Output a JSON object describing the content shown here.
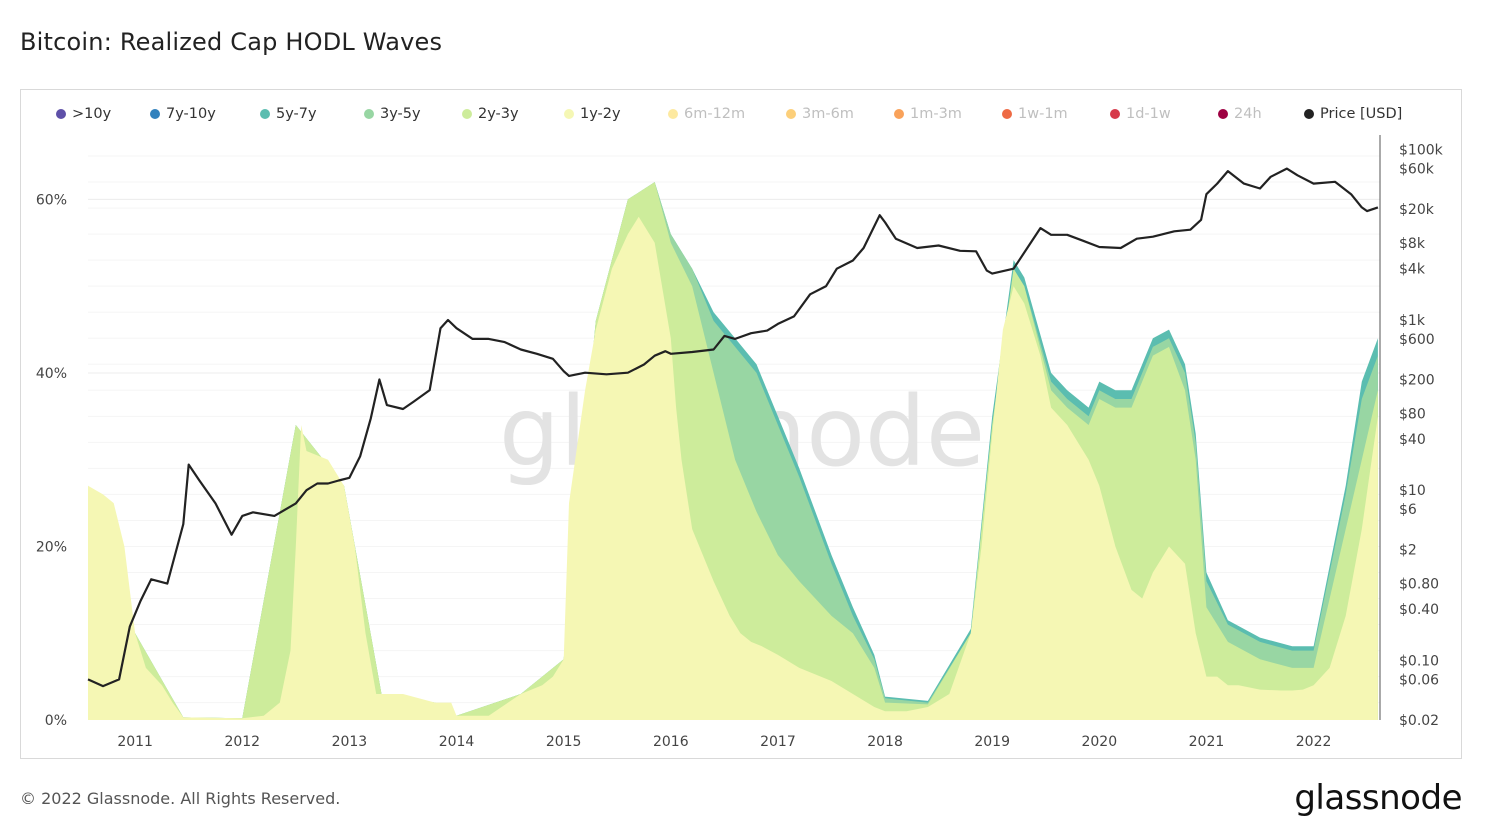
{
  "title": "Bitcoin: Realized Cap HODL Waves",
  "footer": "© 2022 Glassnode. All Rights Reserved.",
  "brand": "glassnode",
  "watermark": "glassnode",
  "legend": [
    {
      "label": ">10y",
      "color": "#5e50a8",
      "active": true
    },
    {
      "label": "7y-10y",
      "color": "#3181bd",
      "active": true
    },
    {
      "label": "5y-7y",
      "color": "#5bbdb0",
      "active": true
    },
    {
      "label": "3y-5y",
      "color": "#98d6a3",
      "active": true
    },
    {
      "label": "2y-3y",
      "color": "#cdec9b",
      "active": true
    },
    {
      "label": "1y-2y",
      "color": "#f5f7b4",
      "active": true
    },
    {
      "label": "6m-12m",
      "color": "#fde9a0",
      "active": false
    },
    {
      "label": "3m-6m",
      "color": "#fccf7a",
      "active": false
    },
    {
      "label": "1m-3m",
      "color": "#f9a25a",
      "active": false
    },
    {
      "label": "1w-1m",
      "color": "#ee6a44",
      "active": false
    },
    {
      "label": "1d-1w",
      "color": "#d63a4a",
      "active": false
    },
    {
      "label": "24h",
      "color": "#9e0142",
      "active": false
    },
    {
      "label": "Price [USD]",
      "color": "#222222",
      "active": true
    }
  ],
  "chart_data": {
    "type": "area",
    "x_ticks": [
      "2011",
      "2012",
      "2013",
      "2014",
      "2015",
      "2016",
      "2017",
      "2018",
      "2019",
      "2020",
      "2021",
      "2022"
    ],
    "y_left_ticks": [
      "0%",
      "20%",
      "40%",
      "60%"
    ],
    "y_right_ticks": [
      "$0.02",
      "$0.06",
      "$0.10",
      "$0.40",
      "$0.80",
      "$2",
      "$6",
      "$10",
      "$40",
      "$80",
      "$200",
      "$600",
      "$1k",
      "$4k",
      "$8k",
      "$20k",
      "$60k",
      "$100k"
    ],
    "y_left_range": [
      0,
      0.68
    ],
    "y_right_range_log": [
      0.02,
      130000
    ],
    "x_range": [
      2010.56,
      2022.62
    ],
    "grid": true,
    "legend_placement": "top",
    "series": [
      {
        "name": "1y-2y",
        "x": [
          2010.56,
          2010.7,
          2010.8,
          2010.9,
          2011.0,
          2011.1,
          2011.25,
          2011.35,
          2011.45,
          2012.0,
          2012.2,
          2012.35,
          2012.45,
          2012.5,
          2012.55,
          2012.6,
          2012.8,
          2012.95,
          2013.05,
          2013.15,
          2013.25,
          2013.3,
          2013.5,
          2013.8,
          2013.95,
          2014.0,
          2014.3,
          2014.6,
          2014.8,
          2014.9,
          2015.0,
          2015.05,
          2015.2,
          2015.3,
          2015.45,
          2015.6,
          2015.7,
          2015.85,
          2016.0,
          2016.05,
          2016.1,
          2016.2,
          2016.4,
          2016.55,
          2016.65,
          2016.75,
          2016.85,
          2017.0,
          2017.2,
          2017.5,
          2017.7,
          2017.9,
          2018.0,
          2018.2,
          2018.4,
          2018.6,
          2018.8,
          2018.9,
          2019.0,
          2019.1,
          2019.2,
          2019.3,
          2019.45,
          2019.55,
          2019.7,
          2019.9,
          2020.0,
          2020.15,
          2020.3,
          2020.4,
          2020.5,
          2020.65,
          2020.8,
          2020.9,
          2021.0,
          2021.1,
          2021.2,
          2021.3,
          2021.5,
          2021.7,
          2021.8,
          2021.9,
          2022.0,
          2022.15,
          2022.3,
          2022.45,
          2022.6
        ],
        "y": [
          0.27,
          0.26,
          0.25,
          0.2,
          0.1,
          0.06,
          0.04,
          0.02,
          0.003,
          0.002,
          0.005,
          0.02,
          0.08,
          0.2,
          0.34,
          0.31,
          0.3,
          0.27,
          0.2,
          0.1,
          0.03,
          0.03,
          0.03,
          0.02,
          0.02,
          0.005,
          0.005,
          0.03,
          0.04,
          0.05,
          0.07,
          0.25,
          0.38,
          0.45,
          0.52,
          0.56,
          0.58,
          0.55,
          0.44,
          0.36,
          0.3,
          0.22,
          0.16,
          0.12,
          0.1,
          0.09,
          0.085,
          0.075,
          0.06,
          0.045,
          0.03,
          0.015,
          0.01,
          0.01,
          0.015,
          0.03,
          0.1,
          0.2,
          0.33,
          0.45,
          0.5,
          0.48,
          0.42,
          0.36,
          0.34,
          0.3,
          0.27,
          0.2,
          0.15,
          0.14,
          0.17,
          0.2,
          0.18,
          0.1,
          0.05,
          0.05,
          0.04,
          0.04,
          0.035,
          0.034,
          0.034,
          0.035,
          0.04,
          0.06,
          0.12,
          0.22,
          0.35
        ]
      },
      {
        "name": "2y-3y",
        "x": [
          2010.56,
          2011.0,
          2011.45,
          2012.0,
          2012.5,
          2012.95,
          2013.3,
          2013.8,
          2014.0,
          2014.6,
          2015.0,
          2015.3,
          2015.6,
          2015.85,
          2016.0,
          2016.2,
          2016.4,
          2016.6,
          2016.8,
          2017.0,
          2017.2,
          2017.5,
          2017.7,
          2017.9,
          2018.0,
          2018.4,
          2018.8,
          2019.0,
          2019.2,
          2019.3,
          2019.55,
          2019.7,
          2019.9,
          2020.0,
          2020.15,
          2020.3,
          2020.5,
          2020.65,
          2020.8,
          2020.9,
          2021.0,
          2021.2,
          2021.5,
          2021.8,
          2022.0,
          2022.3,
          2022.45,
          2022.6
        ],
        "y": [
          0.27,
          0.1,
          0.003,
          0.002,
          0.34,
          0.27,
          0.03,
          0.02,
          0.005,
          0.03,
          0.07,
          0.46,
          0.6,
          0.62,
          0.55,
          0.5,
          0.4,
          0.3,
          0.24,
          0.19,
          0.16,
          0.12,
          0.1,
          0.06,
          0.02,
          0.018,
          0.1,
          0.34,
          0.52,
          0.5,
          0.38,
          0.36,
          0.34,
          0.37,
          0.36,
          0.36,
          0.42,
          0.43,
          0.38,
          0.3,
          0.13,
          0.09,
          0.07,
          0.06,
          0.06,
          0.22,
          0.3,
          0.38
        ]
      },
      {
        "name": "3y-5y",
        "x": [
          2010.56,
          2011.0,
          2011.45,
          2012.0,
          2012.5,
          2012.95,
          2013.3,
          2013.8,
          2014.0,
          2014.6,
          2015.0,
          2015.3,
          2015.6,
          2015.85,
          2016.0,
          2016.2,
          2016.4,
          2016.6,
          2016.8,
          2017.0,
          2017.2,
          2017.5,
          2017.7,
          2017.9,
          2018.0,
          2018.4,
          2018.8,
          2019.0,
          2019.2,
          2019.3,
          2019.55,
          2019.7,
          2019.9,
          2020.0,
          2020.15,
          2020.3,
          2020.5,
          2020.65,
          2020.8,
          2020.9,
          2021.0,
          2021.2,
          2021.5,
          2021.8,
          2022.0,
          2022.3,
          2022.45,
          2022.6
        ],
        "y": [
          0.27,
          0.1,
          0.003,
          0.002,
          0.34,
          0.27,
          0.03,
          0.02,
          0.005,
          0.03,
          0.07,
          0.46,
          0.6,
          0.62,
          0.56,
          0.52,
          0.46,
          0.43,
          0.4,
          0.34,
          0.28,
          0.18,
          0.12,
          0.07,
          0.025,
          0.02,
          0.1,
          0.34,
          0.52,
          0.5,
          0.39,
          0.37,
          0.35,
          0.38,
          0.37,
          0.37,
          0.43,
          0.44,
          0.4,
          0.32,
          0.16,
          0.11,
          0.09,
          0.08,
          0.08,
          0.26,
          0.37,
          0.42
        ]
      },
      {
        "name": "5y-7y",
        "x": [
          2010.56,
          2011.0,
          2011.45,
          2012.0,
          2012.5,
          2012.95,
          2013.3,
          2013.8,
          2014.0,
          2014.6,
          2015.0,
          2015.3,
          2015.6,
          2015.85,
          2016.0,
          2016.2,
          2016.4,
          2016.6,
          2016.8,
          2017.0,
          2017.2,
          2017.5,
          2017.7,
          2017.9,
          2018.0,
          2018.4,
          2018.8,
          2019.0,
          2019.2,
          2019.3,
          2019.55,
          2019.7,
          2019.9,
          2020.0,
          2020.15,
          2020.3,
          2020.5,
          2020.65,
          2020.8,
          2020.9,
          2021.0,
          2021.2,
          2021.5,
          2021.8,
          2022.0,
          2022.3,
          2022.45,
          2022.6
        ],
        "y": [
          0.27,
          0.1,
          0.003,
          0.002,
          0.34,
          0.27,
          0.03,
          0.02,
          0.005,
          0.03,
          0.07,
          0.46,
          0.6,
          0.62,
          0.56,
          0.52,
          0.47,
          0.44,
          0.41,
          0.35,
          0.29,
          0.19,
          0.13,
          0.075,
          0.027,
          0.022,
          0.105,
          0.35,
          0.53,
          0.51,
          0.4,
          0.38,
          0.36,
          0.39,
          0.38,
          0.38,
          0.44,
          0.45,
          0.41,
          0.33,
          0.17,
          0.115,
          0.095,
          0.085,
          0.085,
          0.27,
          0.39,
          0.44
        ]
      }
    ],
    "price": {
      "name": "Price [USD]",
      "x": [
        2010.56,
        2010.7,
        2010.85,
        2010.95,
        2011.05,
        2011.15,
        2011.3,
        2011.45,
        2011.5,
        2011.6,
        2011.75,
        2011.9,
        2012.0,
        2012.1,
        2012.3,
        2012.5,
        2012.6,
        2012.7,
        2012.8,
        2012.9,
        2013.0,
        2013.1,
        2013.2,
        2013.28,
        2013.35,
        2013.5,
        2013.6,
        2013.75,
        2013.85,
        2013.92,
        2014.0,
        2014.15,
        2014.3,
        2014.45,
        2014.6,
        2014.75,
        2014.9,
        2015.0,
        2015.05,
        2015.2,
        2015.4,
        2015.6,
        2015.75,
        2015.85,
        2015.95,
        2016.0,
        2016.2,
        2016.4,
        2016.5,
        2016.6,
        2016.75,
        2016.9,
        2017.0,
        2017.15,
        2017.3,
        2017.45,
        2017.55,
        2017.7,
        2017.8,
        2017.95,
        2018.0,
        2018.1,
        2018.3,
        2018.5,
        2018.7,
        2018.85,
        2018.95,
        2019.0,
        2019.2,
        2019.45,
        2019.55,
        2019.7,
        2019.85,
        2020.0,
        2020.2,
        2020.35,
        2020.5,
        2020.7,
        2020.85,
        2020.95,
        2021.0,
        2021.1,
        2021.2,
        2021.35,
        2021.5,
        2021.6,
        2021.75,
        2021.85,
        2022.0,
        2022.2,
        2022.35,
        2022.45,
        2022.5,
        2022.6
      ],
      "y": [
        0.06,
        0.05,
        0.06,
        0.25,
        0.5,
        0.9,
        0.8,
        4.0,
        20,
        13,
        7,
        3,
        5,
        5.5,
        5,
        7,
        10,
        12,
        12,
        13,
        14,
        25,
        70,
        200,
        100,
        90,
        110,
        150,
        800,
        1000,
        800,
        600,
        600,
        550,
        450,
        400,
        350,
        250,
        220,
        240,
        230,
        240,
        300,
        380,
        430,
        400,
        420,
        450,
        650,
        600,
        700,
        750,
        900,
        1100,
        2000,
        2500,
        4000,
        5000,
        7000,
        17000,
        14000,
        9000,
        7000,
        7500,
        6500,
        6400,
        3800,
        3500,
        4000,
        12000,
        10000,
        10000,
        8500,
        7200,
        7000,
        9000,
        9500,
        11000,
        11500,
        15000,
        30000,
        40000,
        56000,
        40000,
        35000,
        48000,
        60000,
        50000,
        40000,
        42000,
        30000,
        21000,
        19000,
        21000
      ]
    }
  }
}
